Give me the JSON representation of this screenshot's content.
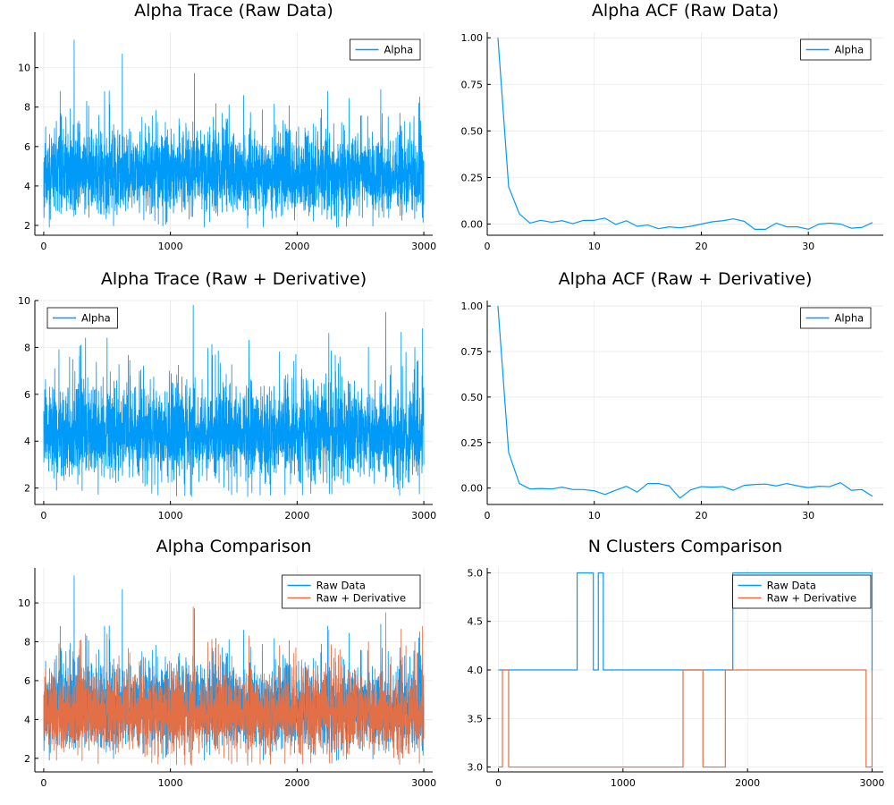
{
  "colors": {
    "series1": "#009af9",
    "series2": "#e26f46"
  },
  "chart_data": [
    {
      "type": "line",
      "title": "Alpha Trace (Raw Data)",
      "xlim": [
        -70,
        3070
      ],
      "ylim": [
        1.5,
        11.8
      ],
      "xticks": [
        0,
        1000,
        2000,
        3000
      ],
      "xtick_labels": [
        "0",
        "1000",
        "2000",
        "3000"
      ],
      "yticks": [
        2,
        4,
        6,
        8,
        10
      ],
      "ytick_labels": [
        "2",
        "4",
        "6",
        "8",
        "10"
      ],
      "legend_position": "top-right",
      "series": [
        {
          "name": "Alpha",
          "color": "series1",
          "kind": "trace",
          "x_start": 0,
          "x_end": 3000,
          "mean": 4.6,
          "spread": 1.0,
          "min": 1.8,
          "seed": 11,
          "spikes": [
            [
              240,
              11.4
            ],
            [
              620,
              10.7
            ],
            [
              130,
              8.8
            ],
            [
              480,
              8.8
            ],
            [
              1190,
              9.7
            ],
            [
              2240,
              8.8
            ],
            [
              2660,
              8.9
            ],
            [
              2960,
              8.2
            ]
          ]
        }
      ]
    },
    {
      "type": "line",
      "title": "Alpha ACF (Raw Data)",
      "xlim": [
        0,
        37
      ],
      "ylim": [
        -0.06,
        1.03
      ],
      "xticks": [
        0,
        10,
        20,
        30
      ],
      "xtick_labels": [
        "0",
        "10",
        "20",
        "30"
      ],
      "yticks": [
        0,
        0.25,
        0.5,
        0.75,
        1.0
      ],
      "ytick_labels": [
        "0.00",
        "0.25",
        "0.50",
        "0.75",
        "1.00"
      ],
      "legend_position": "top-right",
      "series": [
        {
          "name": "Alpha",
          "color": "series1",
          "kind": "line",
          "x": [
            1,
            2,
            3,
            4,
            5,
            6,
            7,
            8,
            9,
            10,
            11,
            12,
            13,
            14,
            15,
            16,
            17,
            18,
            19,
            20,
            21,
            22,
            23,
            24,
            25,
            26,
            27,
            28,
            29,
            30,
            31,
            32,
            33,
            34,
            35,
            36
          ],
          "y": [
            1.0,
            0.2,
            0.055,
            0.005,
            0.02,
            0.01,
            0.018,
            0.002,
            0.02,
            0.02,
            0.032,
            -0.002,
            0.018,
            -0.012,
            -0.005,
            -0.025,
            -0.015,
            -0.02,
            -0.012,
            0.0,
            0.012,
            0.018,
            0.028,
            0.015,
            -0.028,
            -0.028,
            0.005,
            -0.015,
            -0.015,
            -0.028,
            0.0,
            0.005,
            0.0,
            -0.022,
            -0.018,
            0.008
          ]
        }
      ]
    },
    {
      "type": "line",
      "title": "Alpha Trace (Raw + Derivative)",
      "xlim": [
        -70,
        3070
      ],
      "ylim": [
        1.3,
        10.0
      ],
      "xticks": [
        0,
        1000,
        2000,
        3000
      ],
      "xtick_labels": [
        "0",
        "1000",
        "2000",
        "3000"
      ],
      "yticks": [
        2,
        4,
        6,
        8,
        10
      ],
      "ytick_labels": [
        "2",
        "4",
        "6",
        "8",
        "10"
      ],
      "legend_position": "top-left",
      "series": [
        {
          "name": "Alpha",
          "color": "series1",
          "kind": "trace",
          "x_start": 0,
          "x_end": 3000,
          "mean": 4.3,
          "spread": 0.95,
          "min": 1.6,
          "seed": 29,
          "spikes": [
            [
              120,
              7.9
            ],
            [
              330,
              8.4
            ],
            [
              500,
              8.4
            ],
            [
              1180,
              9.8
            ],
            [
              1620,
              8.3
            ],
            [
              2250,
              8.6
            ],
            [
              2700,
              9.5
            ],
            [
              2990,
              8.8
            ]
          ]
        }
      ]
    },
    {
      "type": "line",
      "title": "Alpha ACF (Raw + Derivative)",
      "xlim": [
        0,
        37
      ],
      "ylim": [
        -0.09,
        1.03
      ],
      "xticks": [
        0,
        10,
        20,
        30
      ],
      "xtick_labels": [
        "0",
        "10",
        "20",
        "30"
      ],
      "yticks": [
        0,
        0.25,
        0.5,
        0.75,
        1.0
      ],
      "ytick_labels": [
        "0.00",
        "0.25",
        "0.50",
        "0.75",
        "1.00"
      ],
      "legend_position": "top-right",
      "series": [
        {
          "name": "Alpha",
          "color": "series1",
          "kind": "line",
          "x": [
            1,
            2,
            3,
            4,
            5,
            6,
            7,
            8,
            9,
            10,
            11,
            12,
            13,
            14,
            15,
            16,
            17,
            18,
            19,
            20,
            21,
            22,
            23,
            24,
            25,
            26,
            27,
            28,
            29,
            30,
            31,
            32,
            33,
            34,
            35,
            36
          ],
          "y": [
            1.0,
            0.195,
            0.025,
            -0.005,
            -0.002,
            -0.005,
            0.005,
            -0.008,
            -0.008,
            -0.015,
            -0.035,
            -0.012,
            0.01,
            -0.022,
            0.025,
            0.025,
            0.012,
            -0.055,
            -0.01,
            0.008,
            0.005,
            0.008,
            -0.012,
            0.015,
            0.02,
            0.022,
            0.012,
            0.025,
            0.012,
            0.002,
            0.01,
            0.008,
            0.03,
            -0.012,
            -0.008,
            -0.045
          ]
        }
      ]
    },
    {
      "type": "line",
      "title": "Alpha Comparison",
      "xlim": [
        -70,
        3070
      ],
      "ylim": [
        1.3,
        11.8
      ],
      "xticks": [
        0,
        1000,
        2000,
        3000
      ],
      "xtick_labels": [
        "0",
        "1000",
        "2000",
        "3000"
      ],
      "yticks": [
        2,
        4,
        6,
        8,
        10
      ],
      "ytick_labels": [
        "2",
        "4",
        "6",
        "8",
        "10"
      ],
      "legend_position": "top-right",
      "series": [
        {
          "name": "Raw Data",
          "color": "series1",
          "kind": "trace",
          "x_start": 0,
          "x_end": 3000,
          "mean": 4.6,
          "spread": 1.0,
          "min": 1.8,
          "seed": 11,
          "spikes": [
            [
              240,
              11.4
            ],
            [
              620,
              10.7
            ],
            [
              130,
              8.8
            ],
            [
              480,
              8.8
            ],
            [
              1190,
              9.7
            ],
            [
              2240,
              8.8
            ],
            [
              2660,
              8.9
            ],
            [
              2960,
              8.2
            ]
          ]
        },
        {
          "name": "Raw + Derivative",
          "color": "series2",
          "kind": "trace",
          "x_start": 0,
          "x_end": 3000,
          "mean": 4.3,
          "spread": 0.95,
          "min": 1.6,
          "seed": 29,
          "spikes": [
            [
              120,
              7.9
            ],
            [
              330,
              8.4
            ],
            [
              500,
              8.4
            ],
            [
              1180,
              9.8
            ],
            [
              1620,
              8.3
            ],
            [
              2250,
              8.6
            ],
            [
              2700,
              9.5
            ],
            [
              2990,
              8.8
            ]
          ]
        }
      ]
    },
    {
      "type": "line",
      "title": "N Clusters Comparison",
      "xlim": [
        -90,
        3090
      ],
      "ylim": [
        2.95,
        5.05
      ],
      "xticks": [
        0,
        1000,
        2000,
        3000
      ],
      "xtick_labels": [
        "0",
        "1000",
        "2000",
        "3000"
      ],
      "yticks": [
        3.0,
        3.5,
        4.0,
        4.5,
        5.0
      ],
      "ytick_labels": [
        "3.0",
        "3.5",
        "4.0",
        "4.5",
        "5.0"
      ],
      "legend_position": "top-right",
      "series": [
        {
          "name": "Raw Data",
          "color": "series1",
          "kind": "step",
          "x": [
            0,
            630,
            632,
            760,
            762,
            800,
            802,
            840,
            842,
            1880,
            1882,
            3000
          ],
          "y": [
            4,
            4,
            5,
            5,
            4,
            4,
            5,
            5,
            4,
            4,
            5,
            4
          ]
        },
        {
          "name": "Raw + Derivative",
          "color": "series2",
          "kind": "step",
          "x": [
            0,
            30,
            32,
            80,
            82,
            1480,
            1482,
            1640,
            1642,
            1820,
            1822,
            2950,
            2952,
            3000
          ],
          "y": [
            3,
            3,
            4,
            4,
            3,
            3,
            4,
            4,
            3,
            3,
            4,
            4,
            3,
            4
          ]
        }
      ]
    }
  ]
}
